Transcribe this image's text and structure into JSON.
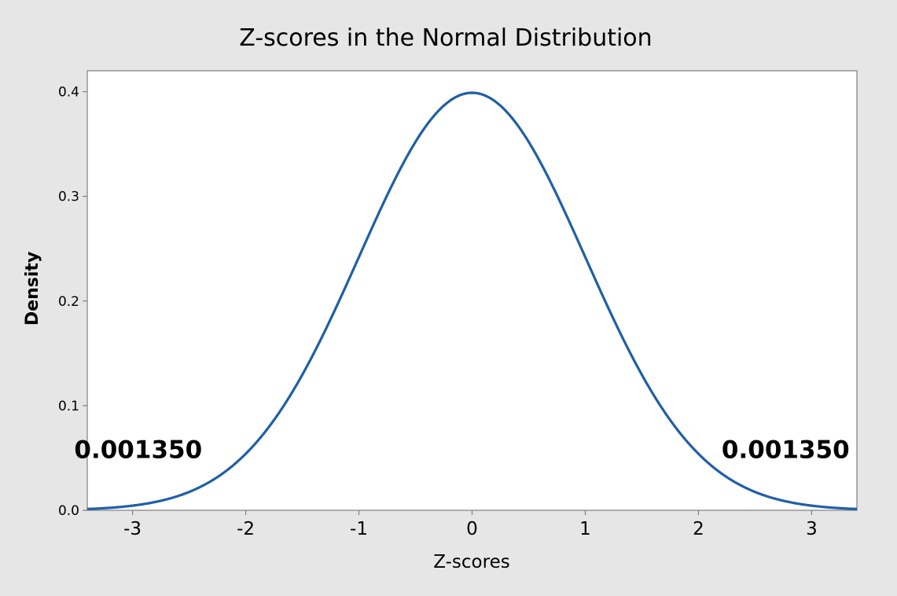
{
  "chart_data": {
    "type": "line",
    "title": "Z-scores in the Normal Distribution",
    "xlabel": "Z-scores",
    "ylabel": "Density",
    "xlim": [
      -3.4,
      3.4
    ],
    "ylim": [
      0,
      0.42
    ],
    "xticks": [
      -3,
      -2,
      -1,
      0,
      1,
      2,
      3
    ],
    "yticks": [
      0.0,
      0.1,
      0.2,
      0.3,
      0.4
    ],
    "ytick_labels": [
      "0.0",
      "0.1",
      "0.2",
      "0.3",
      "0.4"
    ],
    "grid": false,
    "series": [
      {
        "color": "#1f5fa6",
        "x": [
          -3.4,
          -3.2,
          -3.0,
          -2.8,
          -2.6,
          -2.4,
          -2.2,
          -2.0,
          -1.8,
          -1.6,
          -1.4,
          -1.2,
          -1.0,
          -0.8,
          -0.6,
          -0.4,
          -0.2,
          0.0,
          0.2,
          0.4,
          0.6,
          0.8,
          1.0,
          1.2,
          1.4,
          1.6,
          1.8,
          2.0,
          2.2,
          2.4,
          2.6,
          2.8,
          3.0,
          3.2,
          3.4
        ],
        "y": [
          0.0012,
          0.0024,
          0.0044,
          0.0079,
          0.0136,
          0.0224,
          0.0355,
          0.054,
          0.079,
          0.1109,
          0.1497,
          0.1942,
          0.242,
          0.2897,
          0.3332,
          0.3683,
          0.391,
          0.3989,
          0.391,
          0.3683,
          0.3332,
          0.2897,
          0.242,
          0.1942,
          0.1497,
          0.1109,
          0.079,
          0.054,
          0.0355,
          0.0224,
          0.0136,
          0.0079,
          0.0044,
          0.0024,
          0.0012
        ]
      }
    ],
    "annotations": [
      {
        "text": "0.001350",
        "x": -2.95,
        "y": 0.05
      },
      {
        "text": "0.001350",
        "x": 2.77,
        "y": 0.05
      }
    ]
  },
  "colors": {
    "background": "#e6e6e6",
    "plot_area": "#ffffff",
    "plot_border": "#7f7f7f",
    "line": "#1f5fa6"
  }
}
